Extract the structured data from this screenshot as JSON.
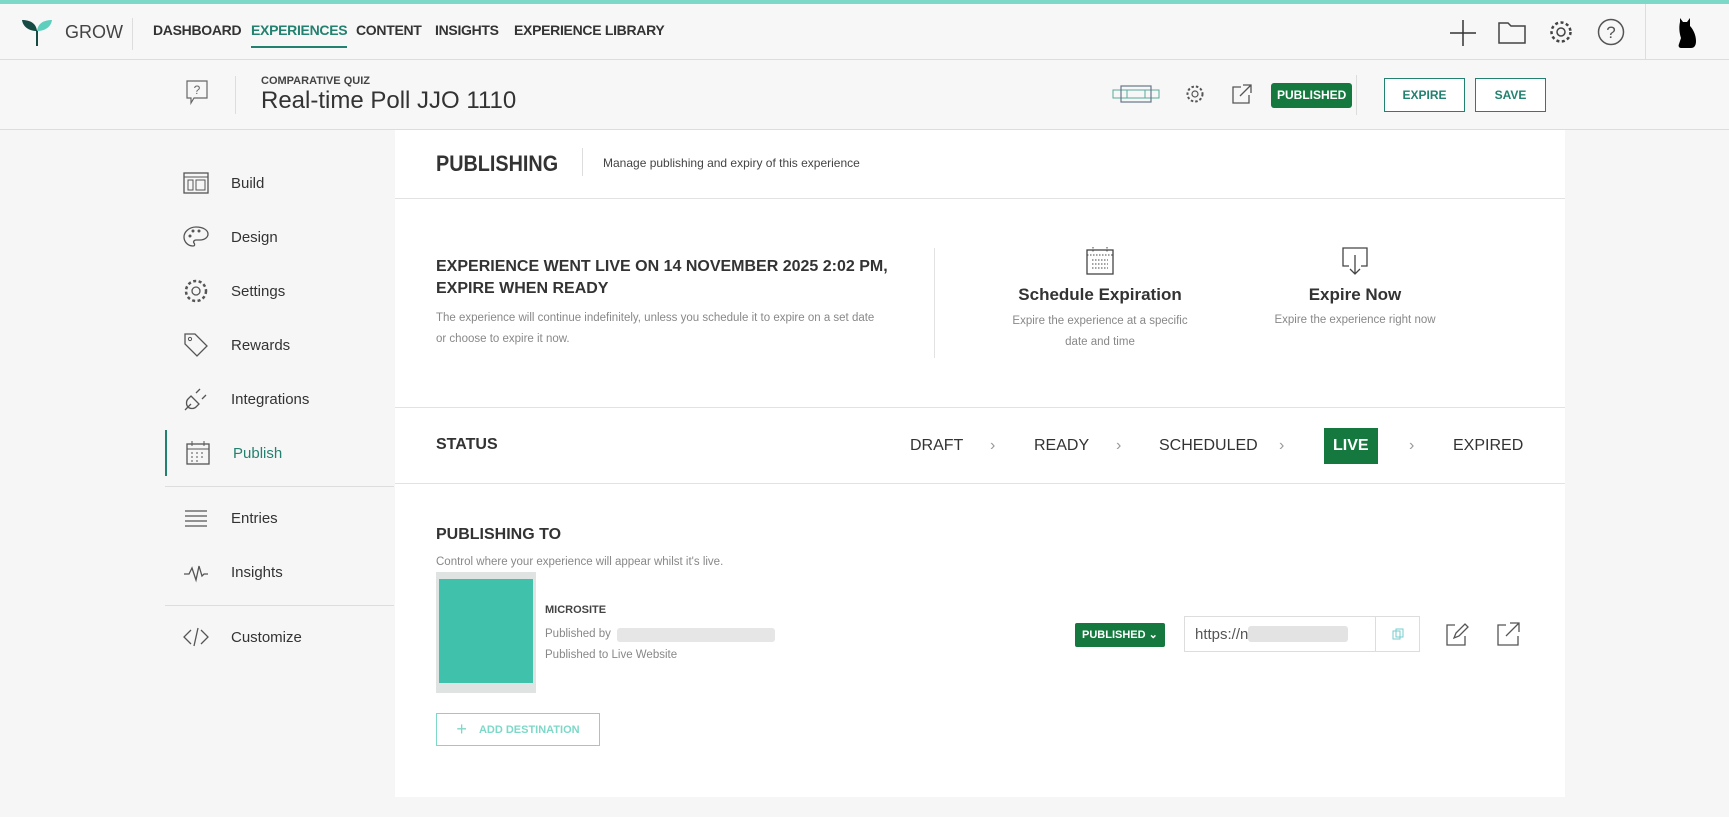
{
  "app": {
    "name": "GROW"
  },
  "nav": {
    "items": [
      "DASHBOARD",
      "EXPERIENCES",
      "CONTENT",
      "INSIGHTS",
      "EXPERIENCE LIBRARY"
    ],
    "active": "EXPERIENCES"
  },
  "header": {
    "type": "COMPARATIVE QUIZ",
    "title": "Real-time Poll JJO 1110",
    "status_badge": "PUBLISHED",
    "expire": "EXPIRE",
    "save": "SAVE"
  },
  "sidebar": {
    "items": [
      {
        "label": "Build",
        "icon": "layout-icon"
      },
      {
        "label": "Design",
        "icon": "palette-icon"
      },
      {
        "label": "Settings",
        "icon": "gear-icon"
      },
      {
        "label": "Rewards",
        "icon": "tag-icon"
      },
      {
        "label": "Integrations",
        "icon": "plug-icon"
      },
      {
        "label": "Publish",
        "icon": "calendar-icon"
      },
      {
        "label": "Entries",
        "icon": "list-icon"
      },
      {
        "label": "Insights",
        "icon": "pulse-icon"
      },
      {
        "label": "Customize",
        "icon": "code-icon"
      }
    ],
    "active": "Publish"
  },
  "publishing": {
    "title": "PUBLISHING",
    "subtitle": "Manage publishing and expiry of this experience",
    "live_heading_1": "EXPERIENCE WENT LIVE ON 14 NOVEMBER 2025 2:02 PM,",
    "live_heading_2": "EXPIRE WHEN READY",
    "live_desc": "The experience will continue indefinitely, unless you schedule it to expire on a set date or choose to expire it now.",
    "schedule": {
      "title": "Schedule Expiration",
      "desc": "Expire the experience at a specific date and time"
    },
    "expire_now": {
      "title": "Expire Now",
      "desc": "Expire the experience right now"
    }
  },
  "status": {
    "label": "STATUS",
    "steps": [
      "DRAFT",
      "READY",
      "SCHEDULED",
      "LIVE",
      "EXPIRED"
    ],
    "current": "LIVE"
  },
  "publishing_to": {
    "title": "PUBLISHING TO",
    "desc": "Control where your experience will appear whilst it's live.",
    "destination": {
      "name": "MICROSITE",
      "published_by": "Published by",
      "published_to": "Published to Live Website",
      "status": "PUBLISHED",
      "url": "https://n"
    },
    "add": "ADD DESTINATION"
  },
  "colors": {
    "accent": "#238170",
    "badge": "#15793f",
    "teal": "#40c1ab",
    "topline": "#7dd8c8"
  }
}
